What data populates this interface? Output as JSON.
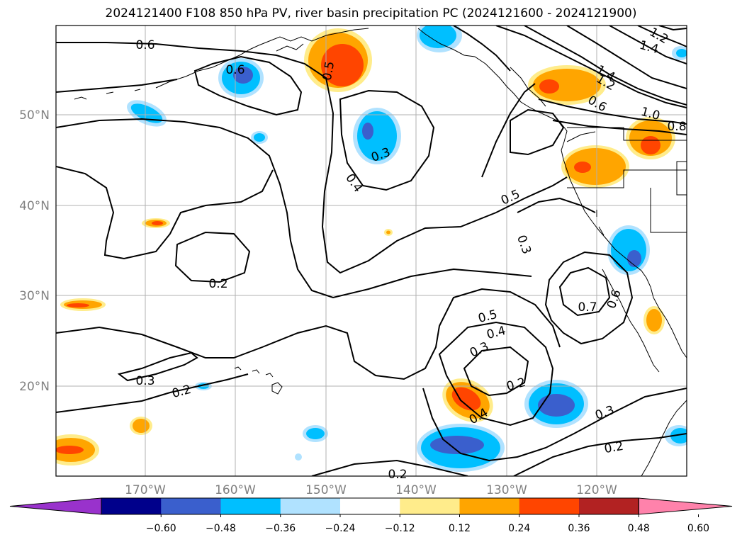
{
  "title": "2024121400 F108 850 hPa PV, river basin precipitation PC (2024121600 - 2024121900)",
  "lon_labels": [
    "170°W",
    "160°W",
    "150°W",
    "140°W",
    "130°W",
    "120°W"
  ],
  "lat_labels": [
    "50°N",
    "40°N",
    "30°N",
    "20°N"
  ],
  "contour_labels": [
    "0.6",
    "0.6",
    "0.5",
    "0.3",
    "0.4",
    "0.5",
    "0.3",
    "0.2",
    "0.3",
    "0.2",
    "0.5",
    "0.4",
    "0.3",
    "0.2",
    "0.4",
    "0.7",
    "0.6",
    "0.3",
    "0.2",
    "0.2",
    "1.4",
    "1.2",
    "1.2",
    "1.4",
    "0.6",
    "1.0",
    "0.8"
  ],
  "colorbar": {
    "tick_labels": [
      "−0.60",
      "−0.48",
      "−0.36",
      "−0.24",
      "−0.12",
      "0.12",
      "0.24",
      "0.36",
      "0.48",
      "0.60"
    ],
    "colors": [
      "#9932cc",
      "#00008b",
      "#3a5fcd",
      "#00bfff",
      "#b0e2ff",
      "#ffffff",
      "#ffec8b",
      "#ffa500",
      "#ff4500",
      "#b22222",
      "#ff82ab"
    ]
  }
}
